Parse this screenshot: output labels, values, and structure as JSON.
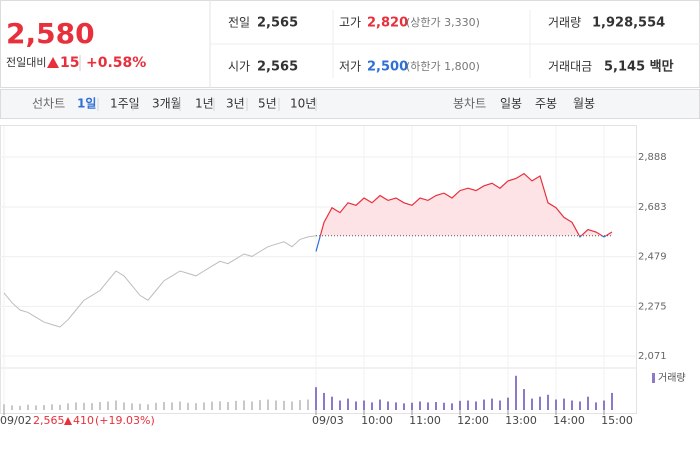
{
  "header": {
    "price": "2,580",
    "change_label": "전일대비",
    "change": "15",
    "change_rate": "+0.58%",
    "stats": [
      {
        "label": "전일",
        "value": "2,565"
      },
      {
        "label": "고가",
        "value": "2,820",
        "note": "(상한가 3,330)"
      },
      {
        "label": "거래량",
        "value": "1,928,554"
      },
      {
        "label": "시가",
        "value": "2,565"
      },
      {
        "label": "저가",
        "value": "2,500",
        "note": "(하한가 1,800)"
      },
      {
        "label": "거래대금",
        "value": "5,145 백만"
      }
    ]
  },
  "tabs": {
    "line_label": "선차트",
    "line_periods": [
      "1일",
      "1주일",
      "3개월",
      "1년",
      "3년",
      "5년",
      "10년"
    ],
    "candle_label": "봉차트",
    "candle_periods": [
      "일봉",
      "주봉",
      "월봉"
    ]
  },
  "chart_data": {
    "type": "line",
    "xlim": [
      0,
      790
    ],
    "ylim": [
      2034,
      2958
    ],
    "yticks": [
      {
        "value": 2071,
        "label": "2,071"
      },
      {
        "value": 2275,
        "label": "2,275"
      },
      {
        "value": 2479,
        "label": "2,479"
      },
      {
        "value": 2683,
        "label": "2,683"
      },
      {
        "value": 2888,
        "label": "2,888"
      }
    ],
    "xticks": [
      {
        "value": 0,
        "label": "09/02"
      },
      {
        "value": 390,
        "label": "09/03"
      },
      {
        "value": 450,
        "label": "10:00"
      },
      {
        "value": 510,
        "label": "11:00"
      },
      {
        "value": 570,
        "label": "12:00"
      },
      {
        "value": 630,
        "label": "13:00"
      },
      {
        "value": 690,
        "label": "14:00"
      },
      {
        "value": 750,
        "label": "15:00"
      }
    ],
    "baseline": 2565,
    "up_color": "#e8303c",
    "down_color": "#2f6fd6",
    "fill_color": "#fde3e6",
    "series": [
      {
        "color": "#bdbdbd",
        "x": [
          0,
          10,
          20,
          30,
          40,
          50,
          60,
          70,
          80,
          90,
          100,
          110,
          120,
          130,
          140,
          150,
          160,
          170,
          180,
          190,
          200,
          210,
          220,
          230,
          240,
          250,
          260,
          270,
          280,
          290,
          300,
          310,
          320,
          330,
          340,
          350,
          360,
          370,
          380,
          390
        ],
        "values": [
          2330,
          2290,
          2260,
          2250,
          2230,
          2210,
          2200,
          2190,
          2220,
          2260,
          2300,
          2320,
          2340,
          2380,
          2420,
          2400,
          2360,
          2320,
          2300,
          2340,
          2380,
          2400,
          2420,
          2410,
          2400,
          2420,
          2440,
          2460,
          2450,
          2470,
          2490,
          2480,
          2500,
          2520,
          2530,
          2540,
          2520,
          2550,
          2560,
          2565
        ]
      },
      {
        "x": [
          390,
          400,
          410,
          420,
          430,
          440,
          450,
          460,
          470,
          480,
          490,
          500,
          510,
          520,
          530,
          540,
          550,
          560,
          570,
          580,
          590,
          600,
          610,
          620,
          630,
          640,
          650,
          660,
          670,
          680,
          690,
          700,
          710,
          720,
          730,
          740,
          750,
          760
        ],
        "values": [
          2500,
          2620,
          2680,
          2660,
          2700,
          2690,
          2720,
          2700,
          2730,
          2710,
          2720,
          2700,
          2690,
          2720,
          2710,
          2730,
          2740,
          2720,
          2750,
          2760,
          2750,
          2770,
          2780,
          2760,
          2790,
          2800,
          2820,
          2790,
          2810,
          2700,
          2680,
          2640,
          2620,
          2560,
          2590,
          2580,
          2560,
          2580
        ]
      }
    ],
    "volume": {
      "name": "거래량",
      "ylim": [
        0,
        200000
      ],
      "series": [
        {
          "color": "#c8c8c8",
          "values": [
            30000,
            25000,
            22000,
            28000,
            24000,
            26000,
            30000,
            27000,
            35000,
            40000,
            38000,
            36000,
            42000,
            45000,
            50000,
            40000,
            35000,
            33000,
            30000,
            38000,
            42000,
            40000,
            45000,
            38000,
            36000,
            40000,
            44000,
            46000,
            42000,
            48000,
            50000,
            45000,
            52000,
            55000,
            50000,
            48000,
            45000,
            52000,
            55000,
            60000
          ]
        },
        {
          "color": "#8e78c8",
          "values": [
            120000,
            90000,
            70000,
            50000,
            60000,
            45000,
            50000,
            40000,
            55000,
            45000,
            40000,
            35000,
            38000,
            45000,
            40000,
            42000,
            38000,
            35000,
            48000,
            50000,
            45000,
            55000,
            60000,
            50000,
            65000,
            180000,
            110000,
            60000,
            70000,
            80000,
            55000,
            60000,
            50000,
            45000,
            70000,
            40000,
            50000,
            90000
          ]
        }
      ]
    },
    "prev_day_summary": {
      "close": "2,565",
      "change": "410",
      "change_rate": "(+19.03%)"
    }
  }
}
